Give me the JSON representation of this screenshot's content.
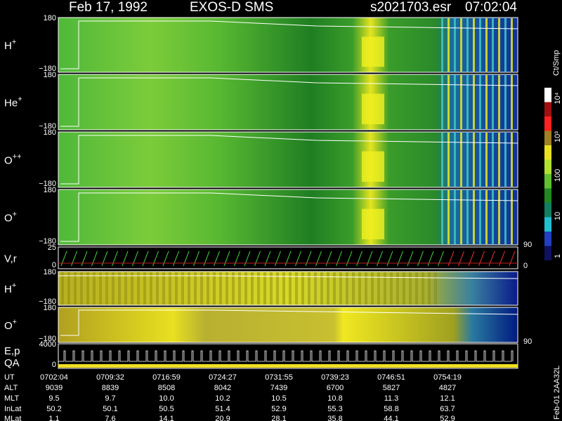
{
  "header": {
    "date": "Feb 17, 1992",
    "instrument": "EXOS-D SMS",
    "file": "s2021703.esr",
    "time": "07:02:04"
  },
  "panels": [
    {
      "label": "H",
      "charge": "+",
      "ticks": [
        "180",
        "−180"
      ]
    },
    {
      "label": "He",
      "charge": "+",
      "ticks": [
        "180",
        "−180"
      ]
    },
    {
      "label": "O",
      "charge": "++",
      "ticks": [
        "180",
        "−180"
      ]
    },
    {
      "label": "O",
      "charge": "+",
      "ticks": [
        "180",
        "−180"
      ],
      "right_ticks": [
        "90",
        "0"
      ]
    },
    {
      "label": "V,r",
      "charge": "",
      "ticks": [
        "25",
        "0"
      ]
    },
    {
      "label": "H",
      "charge": "+",
      "ticks": [
        "180",
        "−180"
      ]
    },
    {
      "label": "O",
      "charge": "+",
      "ticks": [
        "180",
        "−180"
      ],
      "right_ticks": [
        "90"
      ]
    },
    {
      "label": "E,p",
      "label2": "QA",
      "charge": "",
      "ticks": [
        "4000",
        "0"
      ]
    }
  ],
  "colorbar": {
    "unit": "Ct/Smp",
    "ticks": [
      "10⁴",
      "10³",
      "100",
      "10",
      "1"
    ]
  },
  "footer": {
    "rows": [
      {
        "label": "UT",
        "values": [
          "0702:04",
          "0709:32",
          "0716:59",
          "0724:27",
          "0731:55",
          "0739:23",
          "0746:51",
          "0754:19"
        ]
      },
      {
        "label": "ALT",
        "values": [
          "9039",
          "8839",
          "8508",
          "8042",
          "7439",
          "6700",
          "5827",
          "4827"
        ]
      },
      {
        "label": "MLT",
        "values": [
          "9.5",
          "9.7",
          "10.0",
          "10.2",
          "10.5",
          "10.8",
          "11.3",
          "12.1"
        ]
      },
      {
        "label": "InLat",
        "values": [
          "50.2",
          "50.1",
          "50.5",
          "51.4",
          "52.9",
          "55.3",
          "58.8",
          "63.7"
        ]
      },
      {
        "label": "MLat",
        "values": [
          "1.1",
          "7.6",
          "14.1",
          "20.9",
          "28.1",
          "35.8",
          "44.1",
          "52.9"
        ]
      }
    ],
    "side_label": "Feb-01 2AA32L"
  }
}
